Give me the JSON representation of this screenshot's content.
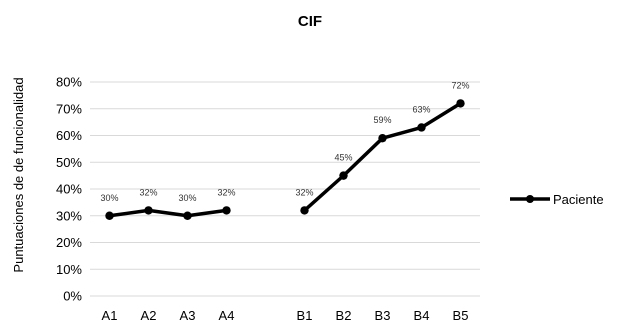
{
  "chart_data": {
    "type": "line",
    "title": "CIF",
    "ylabel": "Puntuaciones de de funcionalidad",
    "xlabel": "",
    "categories": [
      "A1",
      "A2",
      "A3",
      "A4",
      "",
      "B1",
      "B2",
      "B3",
      "B4",
      "B5"
    ],
    "yticks": [
      "0%",
      "10%",
      "20%",
      "30%",
      "40%",
      "50%",
      "60%",
      "70%",
      "80%"
    ],
    "ylim": [
      0,
      80
    ],
    "grid": true,
    "legend_position": "right",
    "series": [
      {
        "name": "Paciente",
        "color": "#000000",
        "segments": [
          {
            "x": [
              "A1",
              "A2",
              "A3",
              "A4"
            ],
            "values": [
              30,
              32,
              30,
              32
            ],
            "labels": [
              "30%",
              "32%",
              "30%",
              "32%"
            ]
          },
          {
            "x": [
              "B1",
              "B2",
              "B3",
              "B4",
              "B5"
            ],
            "values": [
              32,
              45,
              59,
              63,
              72
            ],
            "labels": [
              "32%",
              "45%",
              "59%",
              "63%",
              "72%"
            ]
          }
        ]
      }
    ]
  }
}
